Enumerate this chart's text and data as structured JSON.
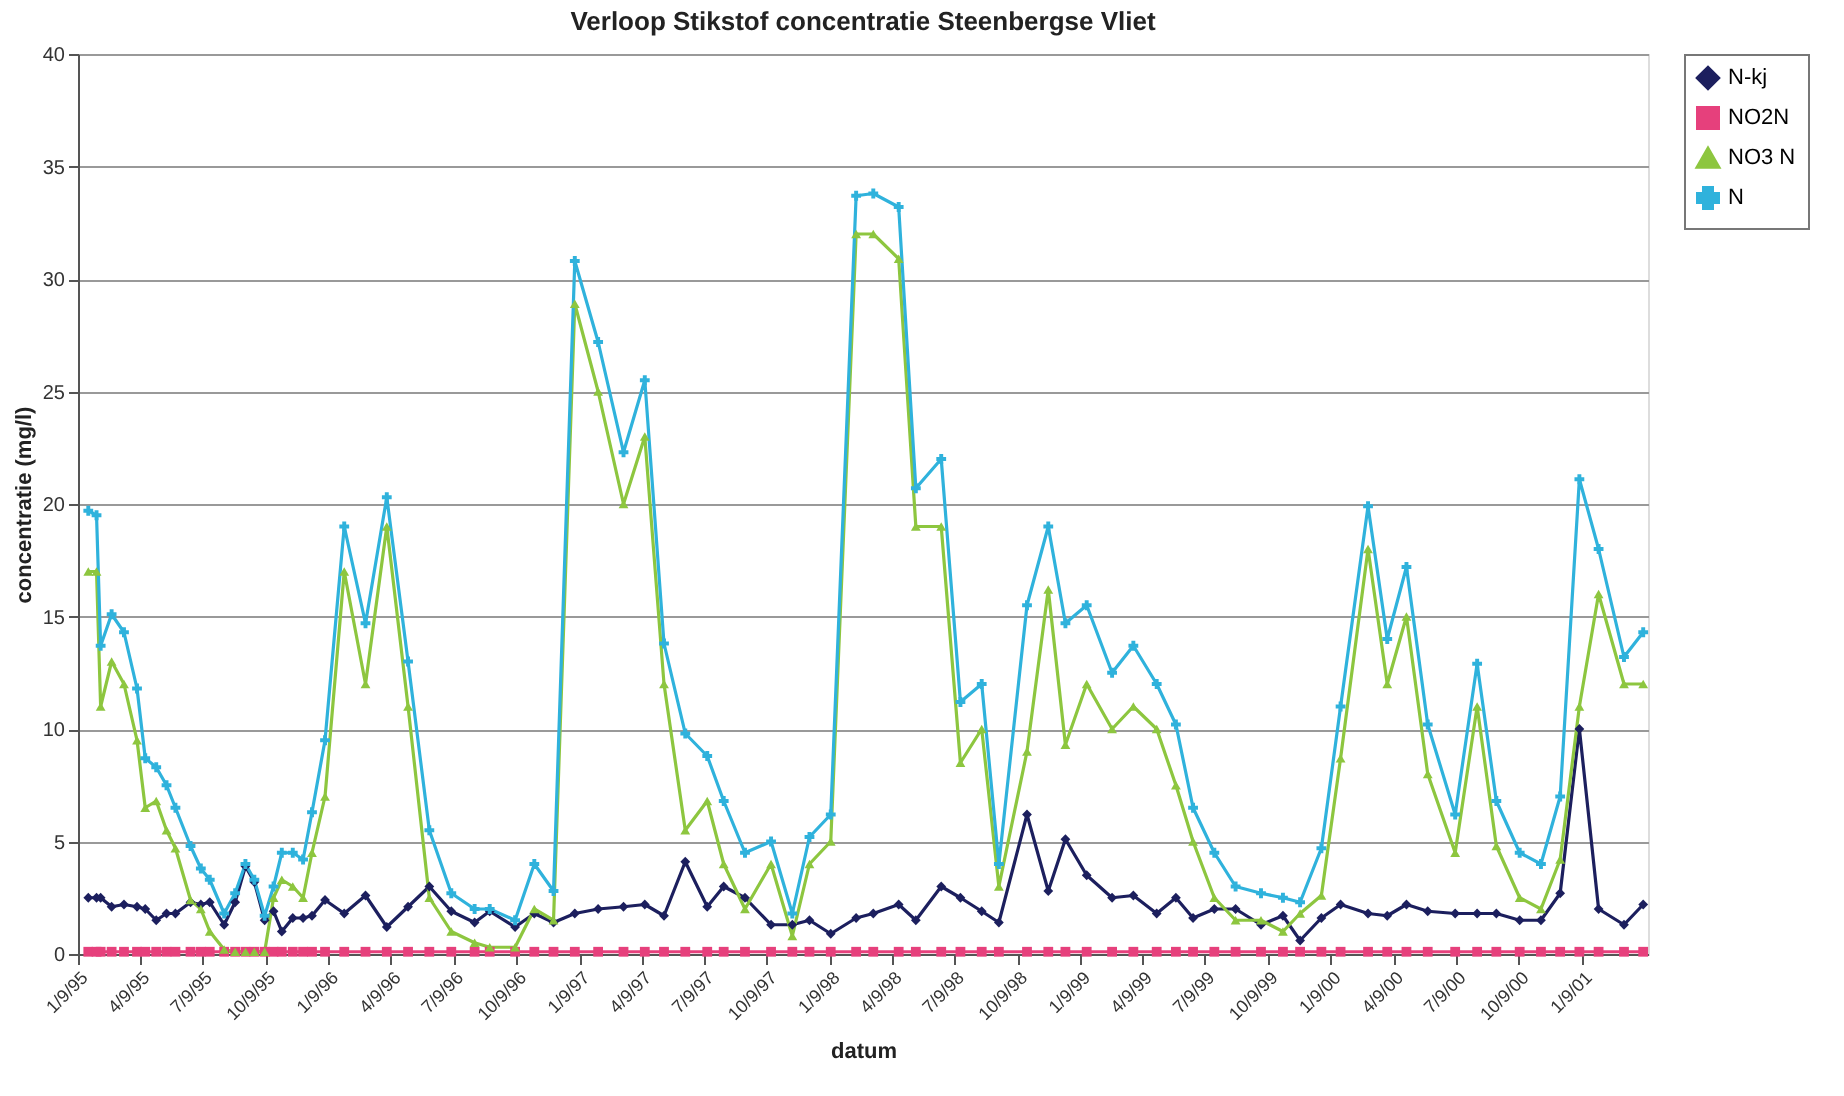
{
  "chart_data": {
    "type": "line",
    "title": "Verloop Stikstof concentratie Steenbergse Vliet",
    "xlabel": "datum",
    "ylabel": "concentratie (mg/l)",
    "x": [
      "1995-01-24",
      "1995-02-05",
      "1995-02-11",
      "1995-02-27",
      "1995-03-17",
      "1995-04-05",
      "1995-04-17",
      "1995-05-03",
      "1995-05-18",
      "1995-05-31",
      "1995-06-22",
      "1995-07-07",
      "1995-07-20",
      "1995-08-10",
      "1995-08-26",
      "1995-09-10",
      "1995-09-23",
      "1995-10-08",
      "1995-10-21",
      "1995-11-02",
      "1995-11-18",
      "1995-12-03",
      "1995-12-16",
      "1996-01-04",
      "1996-02-01",
      "1996-03-03",
      "1996-04-03",
      "1996-05-04",
      "1996-06-04",
      "1996-07-06",
      "1996-08-09",
      "1996-08-31",
      "1996-10-07",
      "1996-11-04",
      "1996-12-02",
      "1997-01-02",
      "1997-02-05",
      "1997-03-14",
      "1997-04-14",
      "1997-05-12",
      "1997-06-12",
      "1997-07-14",
      "1997-08-07",
      "1997-09-07",
      "1997-10-15",
      "1997-11-15",
      "1997-12-10",
      "1998-01-10",
      "1998-02-16",
      "1998-03-13",
      "1998-04-19",
      "1998-05-14",
      "1998-06-20",
      "1998-07-18",
      "1998-08-18",
      "1998-09-12",
      "1998-10-23",
      "1998-11-23",
      "1998-12-18",
      "1999-01-18",
      "1999-02-24",
      "1999-03-27",
      "1999-04-30",
      "1999-05-28",
      "1999-06-22",
      "1999-07-23",
      "1999-08-23",
      "1999-09-29",
      "1999-10-31",
      "1999-11-25",
      "1999-12-26",
      "2000-01-23",
      "2000-03-03",
      "2000-03-31",
      "2000-04-28",
      "2000-05-29",
      "2000-07-08",
      "2000-08-09",
      "2000-09-06",
      "2000-10-10",
      "2000-11-10",
      "2000-12-08",
      "2001-01-05",
      "2001-02-02",
      "2001-03-11",
      "2001-04-08"
    ],
    "series": [
      {
        "name": "N-kj",
        "color": "#1c1f5e",
        "marker": "diamond",
        "values": [
          2.5,
          2.5,
          2.5,
          2.1,
          2.2,
          2.1,
          2.0,
          1.5,
          1.8,
          1.8,
          2.3,
          2.2,
          2.3,
          1.3,
          2.3,
          3.9,
          3.2,
          1.5,
          1.9,
          1.0,
          1.6,
          1.6,
          1.7,
          2.4,
          1.8,
          2.6,
          1.2,
          2.1,
          3.0,
          1.9,
          1.4,
          1.9,
          1.2,
          1.8,
          1.4,
          1.8,
          2.0,
          2.1,
          2.2,
          1.7,
          4.1,
          2.1,
          3.0,
          2.5,
          1.3,
          1.3,
          1.5,
          0.9,
          1.6,
          1.8,
          2.2,
          1.5,
          3.0,
          2.5,
          1.9,
          1.4,
          6.2,
          2.8,
          5.1,
          3.5,
          2.5,
          2.6,
          1.8,
          2.5,
          1.6,
          2.0,
          2.0,
          1.3,
          1.7,
          0.6,
          1.6,
          2.2,
          1.8,
          1.7,
          2.2,
          1.9,
          1.8,
          1.8,
          1.8,
          1.5,
          1.5,
          2.7,
          10.0,
          2.0,
          1.3,
          2.2
        ]
      },
      {
        "name": "NO2N",
        "color": "#e6407c",
        "marker": "square",
        "values": [
          0.1,
          0.1,
          0.1,
          0.1,
          0.1,
          0.1,
          0.1,
          0.1,
          0.1,
          0.1,
          0.1,
          0.1,
          0.1,
          0.1,
          0.1,
          0.1,
          0.1,
          0.1,
          0.1,
          0.1,
          0.1,
          0.1,
          0.1,
          0.1,
          0.1,
          0.1,
          0.1,
          0.1,
          0.1,
          0.1,
          0.1,
          0.1,
          0.1,
          0.1,
          0.1,
          0.1,
          0.1,
          0.1,
          0.1,
          0.1,
          0.1,
          0.1,
          0.1,
          0.1,
          0.1,
          0.1,
          0.1,
          0.1,
          0.1,
          0.1,
          0.1,
          0.1,
          0.1,
          0.1,
          0.1,
          0.1,
          0.1,
          0.1,
          0.1,
          0.1,
          0.1,
          0.1,
          0.1,
          0.1,
          0.1,
          0.1,
          0.1,
          0.1,
          0.1,
          0.1,
          0.1,
          0.1,
          0.1,
          0.1,
          0.1,
          0.1,
          0.1,
          0.1,
          0.1,
          0.1,
          0.1,
          0.1,
          0.1,
          0.1,
          0.1,
          0.1
        ]
      },
      {
        "name": "NO3 N",
        "color": "#8dc63f",
        "marker": "triangle",
        "values": [
          17.0,
          17.0,
          11.0,
          13.0,
          12.0,
          9.5,
          6.5,
          6.8,
          5.5,
          4.7,
          2.4,
          2.0,
          1.0,
          0.2,
          0.1,
          0.1,
          0.1,
          0.1,
          2.5,
          3.3,
          3.0,
          2.5,
          4.5,
          7.0,
          17.0,
          12.0,
          19.0,
          11.0,
          2.5,
          1.0,
          0.5,
          0.3,
          0.3,
          2.0,
          1.5,
          28.9,
          25.0,
          20.0,
          23.0,
          12.0,
          5.5,
          6.8,
          4.0,
          2.0,
          4.0,
          0.8,
          4.0,
          5.0,
          32.0,
          32.0,
          30.9,
          19.0,
          19.0,
          8.5,
          10.0,
          3.0,
          9.0,
          16.2,
          9.3,
          12.0,
          10.0,
          11.0,
          10.0,
          7.5,
          5.0,
          2.5,
          1.5,
          1.5,
          1.0,
          1.8,
          2.6,
          8.7,
          18.0,
          12.0,
          15.0,
          8.0,
          4.5,
          11.0,
          4.8,
          2.5,
          2.0,
          4.2,
          11.0,
          16.0,
          12.0,
          12.0
        ]
      },
      {
        "name": "N",
        "color": "#2fb2dc",
        "marker": "cross",
        "values": [
          19.7,
          19.5,
          13.7,
          15.1,
          14.3,
          11.8,
          8.7,
          8.3,
          7.5,
          6.5,
          4.8,
          3.8,
          3.3,
          1.8,
          2.7,
          4.0,
          3.3,
          1.7,
          3.0,
          4.5,
          4.5,
          4.2,
          6.3,
          9.5,
          19.0,
          14.7,
          20.3,
          13.0,
          5.5,
          2.7,
          2.0,
          2.0,
          1.5,
          4.0,
          2.8,
          30.8,
          27.2,
          22.3,
          25.5,
          13.8,
          9.8,
          8.8,
          6.8,
          4.5,
          5.0,
          1.8,
          5.2,
          6.2,
          33.7,
          33.8,
          33.2,
          20.7,
          22.0,
          11.2,
          12.0,
          4.0,
          15.5,
          19.0,
          14.7,
          15.5,
          12.5,
          13.7,
          12.0,
          10.2,
          6.5,
          4.5,
          3.0,
          2.7,
          2.5,
          2.3,
          4.7,
          11.0,
          19.9,
          14.0,
          17.2,
          10.2,
          6.2,
          12.9,
          6.8,
          4.5,
          4.0,
          7.0,
          21.1,
          18.0,
          13.2,
          14.3
        ]
      }
    ],
    "xlim": [
      "1995-01-09",
      "2001-04-15"
    ],
    "xticks": [
      {
        "value": "1995-01-09",
        "label": "1/9/95"
      },
      {
        "value": "1995-04-09",
        "label": "4/9/95"
      },
      {
        "value": "1995-07-09",
        "label": "7/9/95"
      },
      {
        "value": "1995-10-09",
        "label": "10/9/95"
      },
      {
        "value": "1996-01-09",
        "label": "1/9/96"
      },
      {
        "value": "1996-04-09",
        "label": "4/9/96"
      },
      {
        "value": "1996-07-09",
        "label": "7/9/96"
      },
      {
        "value": "1996-10-09",
        "label": "10/9/96"
      },
      {
        "value": "1997-01-09",
        "label": "1/9/97"
      },
      {
        "value": "1997-04-09",
        "label": "4/9/97"
      },
      {
        "value": "1997-07-09",
        "label": "7/9/97"
      },
      {
        "value": "1997-10-09",
        "label": "10/9/97"
      },
      {
        "value": "1998-01-09",
        "label": "1/9/98"
      },
      {
        "value": "1998-04-09",
        "label": "4/9/98"
      },
      {
        "value": "1998-07-09",
        "label": "7/9/98"
      },
      {
        "value": "1998-10-09",
        "label": "10/9/98"
      },
      {
        "value": "1999-01-09",
        "label": "1/9/99"
      },
      {
        "value": "1999-04-09",
        "label": "4/9/99"
      },
      {
        "value": "1999-07-09",
        "label": "7/9/99"
      },
      {
        "value": "1999-10-09",
        "label": "10/9/99"
      },
      {
        "value": "2000-01-09",
        "label": "1/9/00"
      },
      {
        "value": "2000-04-09",
        "label": "4/9/00"
      },
      {
        "value": "2000-07-09",
        "label": "7/9/00"
      },
      {
        "value": "2000-10-09",
        "label": "10/9/00"
      },
      {
        "value": "2001-01-09",
        "label": "1/9/01"
      }
    ],
    "ylim": [
      0,
      40
    ],
    "yticks": [
      0,
      5,
      10,
      15,
      20,
      25,
      30,
      35,
      40
    ],
    "grid": "y",
    "legend": "right"
  }
}
